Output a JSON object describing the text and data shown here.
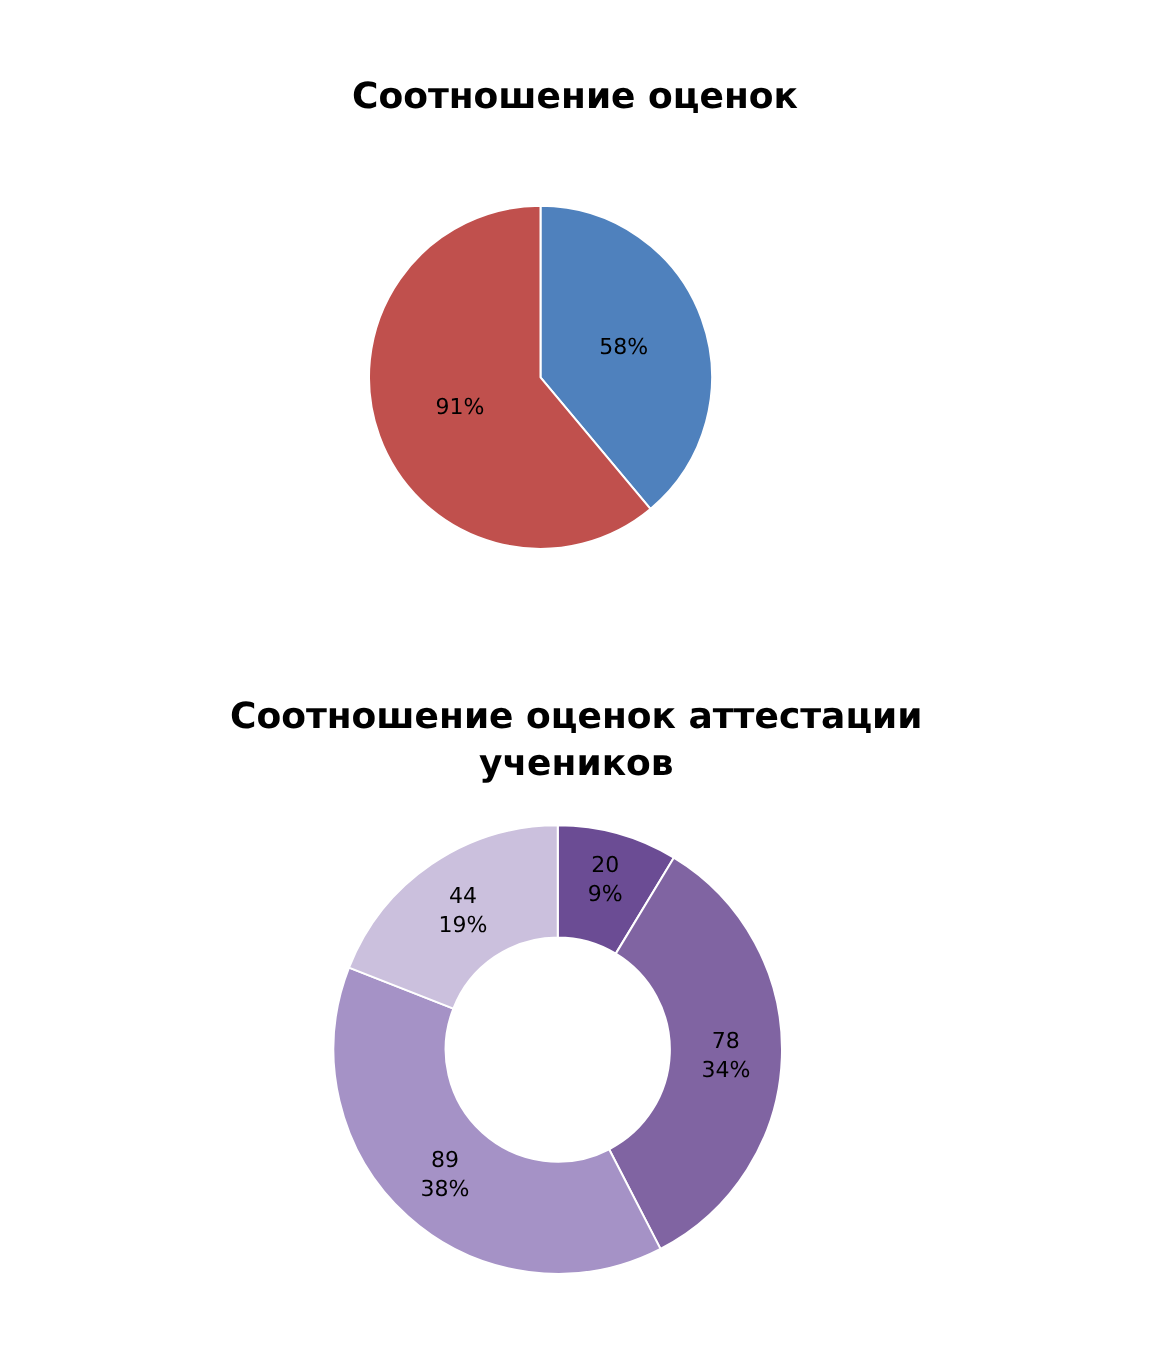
{
  "chart_data": [
    {
      "type": "pie",
      "title": "Соотношение оценок",
      "categories": [
        null,
        null
      ],
      "values": [
        58,
        91
      ],
      "colors": [
        "#4f81bd",
        "#c0504d"
      ],
      "value_labels": [
        "58%",
        "91%"
      ]
    },
    {
      "type": "donut",
      "title": "Соотношение оценок аттестации учеников",
      "categories": [
        null,
        null,
        null,
        null
      ],
      "values": [
        20,
        78,
        89,
        44
      ],
      "colors": [
        "#6b4c94",
        "#8064a2",
        "#a592c6",
        "#cbc0dd"
      ],
      "value_labels": [
        "20\n9%",
        "78\n34%",
        "89\n38%",
        "44\n19%"
      ]
    }
  ]
}
